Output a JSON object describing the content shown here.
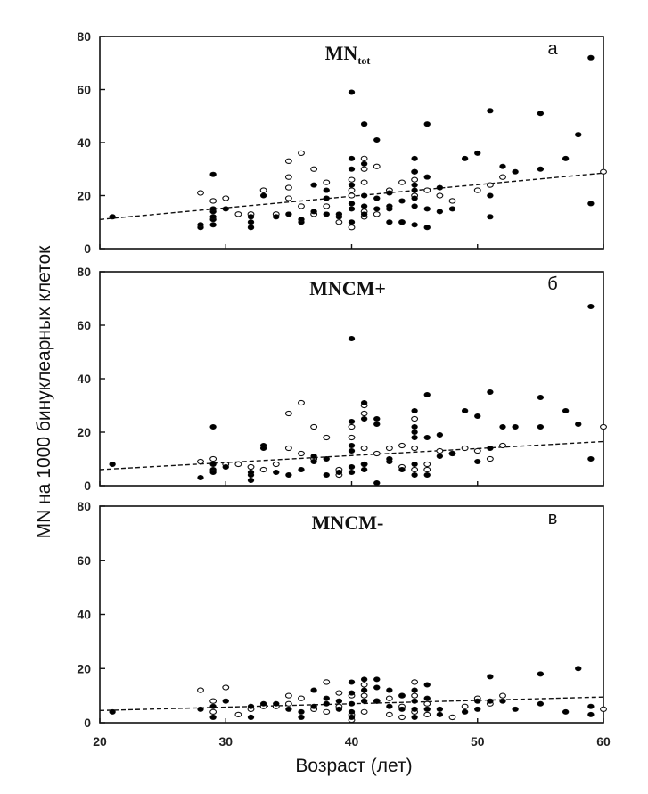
{
  "chart_data": {
    "type": "scatter",
    "ylabel": "MN на 1000 бинуклеарных клеток",
    "xlabel": "Возраст (лет)",
    "xlim": [
      20,
      60
    ],
    "xticks": [
      "20",
      "30",
      "40",
      "50",
      "60"
    ],
    "ylim": [
      0,
      80
    ],
    "yticks": [
      "0",
      "20",
      "40",
      "60",
      "80"
    ],
    "legend": "none",
    "grid": false,
    "marker_styles": {
      "filled": "#000000",
      "open": "#ffffff"
    },
    "panels": [
      {
        "title_main": "MN",
        "title_sub": "tot",
        "letter": "а",
        "trend": {
          "x": [
            20,
            60
          ],
          "y": [
            11,
            28.5
          ],
          "style": "dashed"
        },
        "points_filled": [
          [
            21,
            12
          ],
          [
            28,
            8
          ],
          [
            28,
            9
          ],
          [
            29,
            28
          ],
          [
            29,
            9
          ],
          [
            29,
            11
          ],
          [
            29,
            12
          ],
          [
            29,
            14
          ],
          [
            29,
            15
          ],
          [
            30,
            15
          ],
          [
            32,
            8
          ],
          [
            32,
            10
          ],
          [
            32,
            12
          ],
          [
            33,
            20
          ],
          [
            34,
            12
          ],
          [
            35,
            13
          ],
          [
            36,
            10
          ],
          [
            36,
            11
          ],
          [
            37,
            14
          ],
          [
            37,
            24
          ],
          [
            38,
            13
          ],
          [
            38,
            19
          ],
          [
            38,
            22
          ],
          [
            39,
            12
          ],
          [
            39,
            13
          ],
          [
            40,
            59
          ],
          [
            40,
            34
          ],
          [
            40,
            30
          ],
          [
            40,
            24
          ],
          [
            40,
            17
          ],
          [
            40,
            15
          ],
          [
            40,
            10
          ],
          [
            41,
            47
          ],
          [
            41,
            32
          ],
          [
            41,
            20
          ],
          [
            41,
            16
          ],
          [
            41,
            13
          ],
          [
            42,
            41
          ],
          [
            42,
            19
          ],
          [
            42,
            15
          ],
          [
            43,
            21
          ],
          [
            43,
            16
          ],
          [
            43,
            15
          ],
          [
            43,
            10
          ],
          [
            44,
            18
          ],
          [
            44,
            10
          ],
          [
            45,
            34
          ],
          [
            45,
            29
          ],
          [
            45,
            24
          ],
          [
            45,
            22
          ],
          [
            45,
            19
          ],
          [
            45,
            16
          ],
          [
            45,
            9
          ],
          [
            46,
            47
          ],
          [
            46,
            27
          ],
          [
            46,
            15
          ],
          [
            46,
            8
          ],
          [
            47,
            23
          ],
          [
            47,
            14
          ],
          [
            48,
            15
          ],
          [
            49,
            34
          ],
          [
            50,
            36
          ],
          [
            51,
            52
          ],
          [
            51,
            20
          ],
          [
            51,
            12
          ],
          [
            52,
            31
          ],
          [
            53,
            29
          ],
          [
            55,
            51
          ],
          [
            55,
            30
          ],
          [
            57,
            34
          ],
          [
            58,
            43
          ],
          [
            59,
            72
          ],
          [
            59,
            17
          ]
        ],
        "points_open": [
          [
            28,
            21
          ],
          [
            29,
            18
          ],
          [
            30,
            19
          ],
          [
            31,
            13
          ],
          [
            32,
            13
          ],
          [
            33,
            22
          ],
          [
            34,
            13
          ],
          [
            35,
            33
          ],
          [
            35,
            27
          ],
          [
            35,
            23
          ],
          [
            35,
            19
          ],
          [
            36,
            36
          ],
          [
            36,
            16
          ],
          [
            37,
            30
          ],
          [
            37,
            13
          ],
          [
            38,
            25
          ],
          [
            38,
            16
          ],
          [
            39,
            10
          ],
          [
            40,
            26
          ],
          [
            40,
            22
          ],
          [
            40,
            20
          ],
          [
            40,
            8
          ],
          [
            41,
            34
          ],
          [
            41,
            30
          ],
          [
            41,
            25
          ],
          [
            41,
            14
          ],
          [
            41,
            12
          ],
          [
            42,
            31
          ],
          [
            42,
            13
          ],
          [
            43,
            22
          ],
          [
            44,
            25
          ],
          [
            44,
            10
          ],
          [
            45,
            29
          ],
          [
            45,
            26
          ],
          [
            45,
            20
          ],
          [
            46,
            22
          ],
          [
            47,
            20
          ],
          [
            48,
            18
          ],
          [
            50,
            22
          ],
          [
            51,
            24
          ],
          [
            52,
            27
          ],
          [
            60,
            29
          ]
        ]
      },
      {
        "title_main": "MNCM+",
        "title_sub": "",
        "letter": "б",
        "trend": {
          "x": [
            20,
            60
          ],
          "y": [
            6,
            16.5
          ],
          "style": "dashed"
        },
        "points_filled": [
          [
            21,
            8
          ],
          [
            28,
            3
          ],
          [
            29,
            22
          ],
          [
            29,
            8
          ],
          [
            29,
            6
          ],
          [
            29,
            5
          ],
          [
            30,
            7
          ],
          [
            32,
            2
          ],
          [
            32,
            4
          ],
          [
            32,
            5
          ],
          [
            33,
            15
          ],
          [
            33,
            14
          ],
          [
            34,
            5
          ],
          [
            35,
            4
          ],
          [
            36,
            6
          ],
          [
            37,
            9
          ],
          [
            37,
            11
          ],
          [
            38,
            4
          ],
          [
            38,
            10
          ],
          [
            39,
            5
          ],
          [
            40,
            55
          ],
          [
            40,
            24
          ],
          [
            40,
            15
          ],
          [
            40,
            13
          ],
          [
            40,
            7
          ],
          [
            40,
            5
          ],
          [
            41,
            31
          ],
          [
            41,
            25
          ],
          [
            41,
            8
          ],
          [
            41,
            6
          ],
          [
            42,
            25
          ],
          [
            42,
            23
          ],
          [
            42,
            1
          ],
          [
            43,
            9
          ],
          [
            43,
            10
          ],
          [
            44,
            6
          ],
          [
            45,
            28
          ],
          [
            45,
            22
          ],
          [
            45,
            20
          ],
          [
            45,
            18
          ],
          [
            45,
            8
          ],
          [
            45,
            4
          ],
          [
            46,
            34
          ],
          [
            46,
            18
          ],
          [
            46,
            4
          ],
          [
            47,
            19
          ],
          [
            47,
            11
          ],
          [
            48,
            12
          ],
          [
            49,
            28
          ],
          [
            50,
            26
          ],
          [
            50,
            9
          ],
          [
            51,
            35
          ],
          [
            51,
            14
          ],
          [
            52,
            22
          ],
          [
            53,
            22
          ],
          [
            55,
            33
          ],
          [
            55,
            22
          ],
          [
            57,
            28
          ],
          [
            58,
            23
          ],
          [
            59,
            67
          ],
          [
            59,
            10
          ]
        ],
        "points_open": [
          [
            28,
            9
          ],
          [
            29,
            10
          ],
          [
            30,
            8
          ],
          [
            31,
            8
          ],
          [
            32,
            7
          ],
          [
            33,
            6
          ],
          [
            34,
            8
          ],
          [
            35,
            14
          ],
          [
            35,
            27
          ],
          [
            36,
            31
          ],
          [
            36,
            12
          ],
          [
            37,
            10
          ],
          [
            37,
            22
          ],
          [
            38,
            18
          ],
          [
            39,
            4
          ],
          [
            39,
            6
          ],
          [
            40,
            22
          ],
          [
            40,
            18
          ],
          [
            41,
            30
          ],
          [
            41,
            27
          ],
          [
            41,
            14
          ],
          [
            41,
            8
          ],
          [
            42,
            12
          ],
          [
            43,
            14
          ],
          [
            44,
            15
          ],
          [
            44,
            7
          ],
          [
            45,
            14
          ],
          [
            45,
            6
          ],
          [
            45,
            25
          ],
          [
            46,
            6
          ],
          [
            46,
            8
          ],
          [
            47,
            13
          ],
          [
            48,
            12
          ],
          [
            49,
            14
          ],
          [
            50,
            13
          ],
          [
            51,
            10
          ],
          [
            52,
            15
          ],
          [
            60,
            22
          ]
        ]
      },
      {
        "title_main": "MNCM-",
        "title_sub": "",
        "letter": "в",
        "trend": {
          "x": [
            20,
            60
          ],
          "y": [
            4.5,
            9.5
          ],
          "style": "dashed"
        },
        "points_filled": [
          [
            21,
            4
          ],
          [
            28,
            5
          ],
          [
            29,
            6
          ],
          [
            29,
            2
          ],
          [
            30,
            8
          ],
          [
            32,
            6
          ],
          [
            32,
            2
          ],
          [
            33,
            7
          ],
          [
            34,
            7
          ],
          [
            35,
            5
          ],
          [
            36,
            2
          ],
          [
            36,
            4
          ],
          [
            37,
            12
          ],
          [
            37,
            6
          ],
          [
            38,
            7
          ],
          [
            38,
            9
          ],
          [
            39,
            5
          ],
          [
            39,
            8
          ],
          [
            40,
            15
          ],
          [
            40,
            11
          ],
          [
            40,
            7
          ],
          [
            40,
            4
          ],
          [
            40,
            2
          ],
          [
            41,
            16
          ],
          [
            41,
            12
          ],
          [
            41,
            8
          ],
          [
            42,
            16
          ],
          [
            42,
            13
          ],
          [
            42,
            8
          ],
          [
            43,
            12
          ],
          [
            43,
            6
          ],
          [
            44,
            10
          ],
          [
            44,
            5
          ],
          [
            45,
            12
          ],
          [
            45,
            8
          ],
          [
            45,
            5
          ],
          [
            45,
            2
          ],
          [
            46,
            14
          ],
          [
            46,
            9
          ],
          [
            46,
            5
          ],
          [
            47,
            3
          ],
          [
            47,
            5
          ],
          [
            49,
            4
          ],
          [
            50,
            8
          ],
          [
            50,
            5
          ],
          [
            51,
            17
          ],
          [
            51,
            8
          ],
          [
            52,
            8
          ],
          [
            53,
            5
          ],
          [
            55,
            18
          ],
          [
            55,
            7
          ],
          [
            57,
            4
          ],
          [
            58,
            20
          ],
          [
            59,
            6
          ],
          [
            59,
            3
          ]
        ],
        "points_open": [
          [
            28,
            12
          ],
          [
            29,
            8
          ],
          [
            29,
            4
          ],
          [
            30,
            13
          ],
          [
            31,
            3
          ],
          [
            32,
            5
          ],
          [
            33,
            6
          ],
          [
            34,
            6
          ],
          [
            35,
            10
          ],
          [
            35,
            7
          ],
          [
            36,
            9
          ],
          [
            37,
            5
          ],
          [
            38,
            15
          ],
          [
            38,
            4
          ],
          [
            39,
            11
          ],
          [
            39,
            6
          ],
          [
            40,
            10
          ],
          [
            40,
            3
          ],
          [
            40,
            1
          ],
          [
            41,
            14
          ],
          [
            41,
            10
          ],
          [
            41,
            4
          ],
          [
            42,
            8
          ],
          [
            43,
            9
          ],
          [
            43,
            3
          ],
          [
            44,
            10
          ],
          [
            44,
            6
          ],
          [
            44,
            2
          ],
          [
            45,
            15
          ],
          [
            45,
            10
          ],
          [
            45,
            4
          ],
          [
            46,
            7
          ],
          [
            46,
            3
          ],
          [
            48,
            2
          ],
          [
            49,
            6
          ],
          [
            50,
            9
          ],
          [
            51,
            7
          ],
          [
            52,
            10
          ],
          [
            60,
            5
          ]
        ]
      }
    ]
  }
}
